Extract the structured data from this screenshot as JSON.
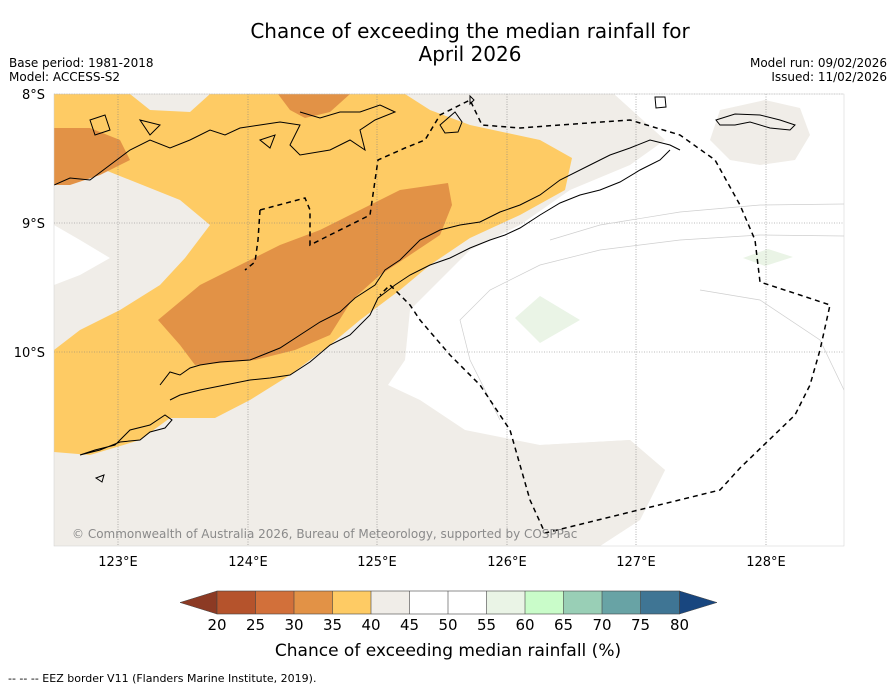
{
  "title": {
    "line1": "Chance of exceeding the median rainfall for",
    "line2": "April 2026"
  },
  "meta": {
    "base_period": "Base period: 1981-2018",
    "model": "Model: ACCESS-S2",
    "model_run": "Model run: 09/02/2026",
    "issued": "Issued: 11/02/2026"
  },
  "map": {
    "lat_labels": [
      "8°S",
      "9°S",
      "10°S"
    ],
    "lon_labels": [
      "123°E",
      "124°E",
      "125°E",
      "126°E",
      "127°E",
      "128°E"
    ],
    "copyright": "© Commonwealth of Australia 2026, Bureau of Meteorology, supported by COSPPac",
    "colors": {
      "c20_25": "#b5532c",
      "c25_30": "#d2703a",
      "c30_35": "#e29246",
      "c35_40": "#fecb64",
      "c40_45": "#f0ede8",
      "c45_55": "#ffffff",
      "c55_60": "#eaf4e6",
      "c60_65": "#c9fcc9",
      "c65_70": "#99cfb6",
      "c70_75": "#68a3a5",
      "c75_80": "#3f7594",
      "c80_up": "#18467f",
      "below_20": "#8c3a24"
    }
  },
  "colorbar": {
    "ticks": [
      "20",
      "25",
      "30",
      "35",
      "40",
      "45",
      "50",
      "55",
      "60",
      "65",
      "70",
      "75",
      "80"
    ],
    "label": "Chance of exceeding median rainfall (%)"
  },
  "footer": "--  --  -- EEZ border V11 (Flanders Marine Institute, 2019)."
}
